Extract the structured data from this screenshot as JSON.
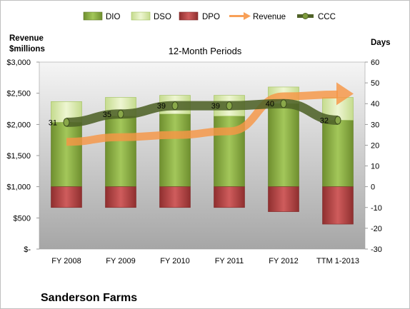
{
  "chart_data": {
    "type": "bar",
    "title": "12-Month Periods",
    "company": "Sanderson Farms",
    "left_axis_label": [
      "Revenue",
      "$millions"
    ],
    "right_axis_label": "Days",
    "categories": [
      "FY 2008",
      "FY 2009",
      "FY 2010",
      "FY 2011",
      "FY 2012",
      "TTM 1-2013"
    ],
    "left_ylim": [
      0,
      3000
    ],
    "left_ticks": [
      0,
      500,
      1000,
      1500,
      2000,
      2500,
      3000
    ],
    "left_tick_labels": [
      "$-",
      "$500",
      "$1,000",
      "$1,500",
      "$2,000",
      "$2,500",
      "$3,000"
    ],
    "right_ylim": [
      -30,
      60
    ],
    "right_ticks": [
      -30,
      -20,
      -10,
      0,
      10,
      20,
      30,
      40,
      50,
      60
    ],
    "legend_position": "top",
    "series": [
      {
        "name": "DIO",
        "axis": "days",
        "color": "#8db443",
        "values": [
          31,
          34,
          35,
          34,
          40,
          32
        ]
      },
      {
        "name": "DSO",
        "axis": "days",
        "color": "#dcecb0",
        "values": [
          10,
          9,
          9,
          10,
          8,
          11
        ]
      },
      {
        "name": "DPO",
        "axis": "days",
        "color": "#b94545",
        "values": [
          10,
          10,
          10,
          10,
          12,
          18
        ]
      },
      {
        "name": "Revenue",
        "axis": "revenue",
        "color": "#f79646",
        "values": [
          1720,
          1795,
          1830,
          1890,
          2450,
          2480
        ]
      },
      {
        "name": "CCC",
        "axis": "days",
        "color": "#4f6228",
        "values": [
          31,
          35,
          39,
          39,
          40,
          32
        ]
      }
    ],
    "ccc_labels": [
      "31",
      "35",
      "39",
      "39",
      "40",
      "32"
    ]
  }
}
